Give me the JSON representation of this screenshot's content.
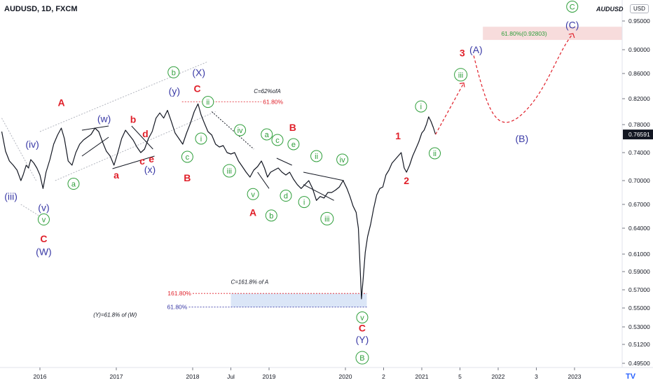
{
  "header": {
    "symbol_line": "AUDUSD, 1D, FXCM",
    "watermark_symbol": "AUDUSD",
    "currency": "USD",
    "logo": "TV"
  },
  "colors": {
    "wave_blue": "#3a3aa6",
    "wave_green": "#2e9e3a",
    "wave_red": "#e0202a",
    "price_line": "#131722",
    "axis_text": "#131722",
    "box_blue": "#dbe6f7",
    "box_pink": "#f5d3d3",
    "current_price_bg": "#131722"
  },
  "chart_data": {
    "type": "line",
    "title": "AUDUSD, 1D, FXCM",
    "xlabel": "",
    "ylabel": "",
    "x_ticks": [
      "2016",
      "2017",
      "2018",
      "Jul",
      "2019",
      "2020",
      "2",
      "2021",
      "5",
      "2022",
      "3",
      "2023"
    ],
    "x_tick_years": [
      2016.0,
      2017.0,
      2018.0,
      2018.5,
      2019.0,
      2020.0,
      2020.5,
      2021.0,
      2021.5,
      2022.0,
      2022.5,
      2023.0
    ],
    "y_ticks": [
      0.95,
      0.9,
      0.86,
      0.82,
      0.78,
      0.74,
      0.7,
      0.67,
      0.64,
      0.61,
      0.59,
      0.57,
      0.55,
      0.53,
      0.512,
      0.495
    ],
    "y_tick_labels": [
      "0.95000",
      "0.90000",
      "0.86000",
      "0.82000",
      "0.78000",
      "0.74000",
      "0.70000",
      "0.67000",
      "0.64000",
      "0.61000",
      "0.59000",
      "0.57000",
      "0.55000",
      "0.53000",
      "0.51200",
      "0.49500"
    ],
    "current_price": 0.76591,
    "current_price_label": "0.76591",
    "price_series": {
      "name": "AUDUSD",
      "points": [
        [
          2015.5,
          0.77
        ],
        [
          2015.55,
          0.742
        ],
        [
          2015.6,
          0.728
        ],
        [
          2015.65,
          0.722
        ],
        [
          2015.7,
          0.715
        ],
        [
          2015.75,
          0.7
        ],
        [
          2015.78,
          0.708
        ],
        [
          2015.82,
          0.722
        ],
        [
          2015.85,
          0.718
        ],
        [
          2015.88,
          0.73
        ],
        [
          2015.92,
          0.725
        ],
        [
          2015.96,
          0.718
        ],
        [
          2016.0,
          0.708
        ],
        [
          2016.04,
          0.69
        ],
        [
          2016.08,
          0.712
        ],
        [
          2016.13,
          0.73
        ],
        [
          2016.18,
          0.752
        ],
        [
          2016.23,
          0.765
        ],
        [
          2016.28,
          0.775
        ],
        [
          2016.32,
          0.76
        ],
        [
          2016.37,
          0.728
        ],
        [
          2016.42,
          0.722
        ],
        [
          2016.47,
          0.74
        ],
        [
          2016.52,
          0.752
        ],
        [
          2016.57,
          0.758
        ],
        [
          2016.62,
          0.762
        ],
        [
          2016.67,
          0.766
        ],
        [
          2016.72,
          0.775
        ],
        [
          2016.77,
          0.77
        ],
        [
          2016.82,
          0.755
        ],
        [
          2016.87,
          0.742
        ],
        [
          2016.92,
          0.735
        ],
        [
          2016.97,
          0.722
        ],
        [
          2017.02,
          0.74
        ],
        [
          2017.07,
          0.76
        ],
        [
          2017.12,
          0.772
        ],
        [
          2017.17,
          0.765
        ],
        [
          2017.22,
          0.758
        ],
        [
          2017.27,
          0.748
        ],
        [
          2017.32,
          0.74
        ],
        [
          2017.37,
          0.745
        ],
        [
          2017.42,
          0.76
        ],
        [
          2017.47,
          0.77
        ],
        [
          2017.52,
          0.79
        ],
        [
          2017.57,
          0.798
        ],
        [
          2017.62,
          0.79
        ],
        [
          2017.67,
          0.802
        ],
        [
          2017.72,
          0.785
        ],
        [
          2017.77,
          0.768
        ],
        [
          2017.82,
          0.76
        ],
        [
          2017.87,
          0.752
        ],
        [
          2017.92,
          0.768
        ],
        [
          2017.97,
          0.782
        ],
        [
          2018.02,
          0.8
        ],
        [
          2018.07,
          0.812
        ],
        [
          2018.11,
          0.795
        ],
        [
          2018.15,
          0.783
        ],
        [
          2018.2,
          0.77
        ],
        [
          2018.25,
          0.765
        ],
        [
          2018.3,
          0.752
        ],
        [
          2018.35,
          0.748
        ],
        [
          2018.4,
          0.75
        ],
        [
          2018.45,
          0.74
        ],
        [
          2018.5,
          0.738
        ],
        [
          2018.55,
          0.74
        ],
        [
          2018.6,
          0.728
        ],
        [
          2018.65,
          0.72
        ],
        [
          2018.7,
          0.712
        ],
        [
          2018.75,
          0.705
        ],
        [
          2018.8,
          0.715
        ],
        [
          2018.85,
          0.72
        ],
        [
          2018.9,
          0.728
        ],
        [
          2018.94,
          0.718
        ],
        [
          2018.98,
          0.705
        ],
        [
          2019.02,
          0.712
        ],
        [
          2019.07,
          0.715
        ],
        [
          2019.12,
          0.718
        ],
        [
          2019.17,
          0.712
        ],
        [
          2019.22,
          0.708
        ],
        [
          2019.27,
          0.712
        ],
        [
          2019.32,
          0.702
        ],
        [
          2019.37,
          0.695
        ],
        [
          2019.42,
          0.69
        ],
        [
          2019.47,
          0.695
        ],
        [
          2019.52,
          0.7
        ],
        [
          2019.57,
          0.69
        ],
        [
          2019.62,
          0.675
        ],
        [
          2019.67,
          0.68
        ],
        [
          2019.72,
          0.678
        ],
        [
          2019.77,
          0.685
        ],
        [
          2019.82,
          0.685
        ],
        [
          2019.87,
          0.688
        ],
        [
          2019.92,
          0.692
        ],
        [
          2019.97,
          0.7
        ],
        [
          2020.02,
          0.69
        ],
        [
          2020.06,
          0.68
        ],
        [
          2020.1,
          0.668
        ],
        [
          2020.14,
          0.66
        ],
        [
          2020.17,
          0.64
        ],
        [
          2020.19,
          0.6
        ],
        [
          2020.21,
          0.56
        ],
        [
          2020.23,
          0.58
        ],
        [
          2020.26,
          0.612
        ],
        [
          2020.29,
          0.63
        ],
        [
          2020.33,
          0.645
        ],
        [
          2020.37,
          0.665
        ],
        [
          2020.41,
          0.682
        ],
        [
          2020.45,
          0.69
        ],
        [
          2020.49,
          0.692
        ],
        [
          2020.53,
          0.708
        ],
        [
          2020.57,
          0.715
        ],
        [
          2020.61,
          0.725
        ],
        [
          2020.65,
          0.73
        ],
        [
          2020.69,
          0.735
        ],
        [
          2020.73,
          0.74
        ],
        [
          2020.77,
          0.718
        ],
        [
          2020.8,
          0.712
        ],
        [
          2020.84,
          0.722
        ],
        [
          2020.88,
          0.735
        ],
        [
          2020.92,
          0.745
        ],
        [
          2020.96,
          0.755
        ],
        [
          2021.0,
          0.768
        ],
        [
          2021.03,
          0.772
        ],
        [
          2021.06,
          0.78
        ],
        [
          2021.09,
          0.792
        ],
        [
          2021.12,
          0.785
        ],
        [
          2021.15,
          0.776
        ],
        [
          2021.18,
          0.766
        ]
      ]
    },
    "projection": {
      "name": "projected path",
      "points": [
        [
          2021.18,
          0.766
        ],
        [
          2021.55,
          0.845
        ],
        [
          2021.68,
          0.89
        ],
        [
          2022.25,
          0.79
        ],
        [
          2022.85,
          0.905
        ],
        [
          2022.98,
          0.928
        ]
      ]
    },
    "fib_levels": [
      {
        "label": "61.80%",
        "value": 0.815,
        "color": "#e0202a"
      },
      {
        "label": "161.80%",
        "value": 0.566,
        "color": "#e0202a"
      },
      {
        "label": "61.80%",
        "value": 0.551,
        "color": "#3a3aa6"
      },
      {
        "label": "61.80%(0.92803)",
        "value": 0.928,
        "color": "#2e9e3a"
      }
    ],
    "annotations": [
      {
        "text": "C=62%ofA",
        "x": 2018.8,
        "y": 0.832
      },
      {
        "text": "C=161.8% of A",
        "x": 2018.5,
        "y": 0.579
      },
      {
        "text": "(Y)=61.8% of (W)",
        "x": 2016.7,
        "y": 0.543
      }
    ],
    "wave_labels": [
      {
        "text": "(iii)",
        "x": 2015.62,
        "y": 0.68,
        "color": "blue",
        "circle": false
      },
      {
        "text": "(iv)",
        "x": 2015.9,
        "y": 0.752,
        "color": "blue",
        "circle": false
      },
      {
        "text": "(v)",
        "x": 2016.05,
        "y": 0.666,
        "color": "blue",
        "circle": false
      },
      {
        "text": "v",
        "x": 2016.05,
        "y": 0.651,
        "color": "green",
        "circle": true
      },
      {
        "text": "C",
        "x": 2016.05,
        "y": 0.628,
        "color": "red",
        "circle": false
      },
      {
        "text": "(W)",
        "x": 2016.05,
        "y": 0.613,
        "color": "blue",
        "circle": false
      },
      {
        "text": "A",
        "x": 2016.28,
        "y": 0.814,
        "color": "red",
        "circle": false
      },
      {
        "text": "a",
        "x": 2016.44,
        "y": 0.696,
        "color": "green",
        "circle": true
      },
      {
        "text": "(w)",
        "x": 2016.84,
        "y": 0.789,
        "color": "blue",
        "circle": false
      },
      {
        "text": "a",
        "x": 2017.0,
        "y": 0.708,
        "color": "red",
        "circle": false
      },
      {
        "text": "b",
        "x": 2017.22,
        "y": 0.788,
        "color": "red",
        "circle": false
      },
      {
        "text": "d",
        "x": 2017.38,
        "y": 0.767,
        "color": "red",
        "circle": false
      },
      {
        "text": "c",
        "x": 2017.34,
        "y": 0.728,
        "color": "red",
        "circle": false
      },
      {
        "text": "e",
        "x": 2017.46,
        "y": 0.731,
        "color": "red",
        "circle": false
      },
      {
        "text": "(x)",
        "x": 2017.44,
        "y": 0.716,
        "color": "blue",
        "circle": false
      },
      {
        "text": "b",
        "x": 2017.75,
        "y": 0.862,
        "color": "green",
        "circle": true
      },
      {
        "text": "(y)",
        "x": 2017.76,
        "y": 0.832,
        "color": "blue",
        "circle": false
      },
      {
        "text": "(X)",
        "x": 2018.08,
        "y": 0.862,
        "color": "blue",
        "circle": false
      },
      {
        "text": "C",
        "x": 2018.06,
        "y": 0.836,
        "color": "red",
        "circle": false
      },
      {
        "text": "ii",
        "x": 2018.2,
        "y": 0.815,
        "color": "green",
        "circle": true
      },
      {
        "text": "c",
        "x": 2017.93,
        "y": 0.734,
        "color": "green",
        "circle": true
      },
      {
        "text": "i",
        "x": 2018.11,
        "y": 0.76,
        "color": "green",
        "circle": true
      },
      {
        "text": "B",
        "x": 2017.93,
        "y": 0.704,
        "color": "red",
        "circle": false
      },
      {
        "text": "iv",
        "x": 2018.62,
        "y": 0.772,
        "color": "green",
        "circle": true
      },
      {
        "text": "iii",
        "x": 2018.48,
        "y": 0.714,
        "color": "green",
        "circle": true
      },
      {
        "text": "a",
        "x": 2018.97,
        "y": 0.766,
        "color": "green",
        "circle": true
      },
      {
        "text": "c",
        "x": 2019.11,
        "y": 0.758,
        "color": "green",
        "circle": true
      },
      {
        "text": "e",
        "x": 2019.32,
        "y": 0.752,
        "color": "green",
        "circle": true
      },
      {
        "text": "B",
        "x": 2019.31,
        "y": 0.776,
        "color": "red",
        "circle": false
      },
      {
        "text": "v",
        "x": 2018.79,
        "y": 0.683,
        "color": "green",
        "circle": true
      },
      {
        "text": "d",
        "x": 2019.22,
        "y": 0.681,
        "color": "green",
        "circle": true
      },
      {
        "text": "A",
        "x": 2018.79,
        "y": 0.66,
        "color": "red",
        "circle": false
      },
      {
        "text": "b",
        "x": 2019.03,
        "y": 0.656,
        "color": "green",
        "circle": true
      },
      {
        "text": "ii",
        "x": 2019.62,
        "y": 0.735,
        "color": "green",
        "circle": true
      },
      {
        "text": "iv",
        "x": 2019.96,
        "y": 0.73,
        "color": "green",
        "circle": true
      },
      {
        "text": "i",
        "x": 2019.46,
        "y": 0.673,
        "color": "green",
        "circle": true
      },
      {
        "text": "iii",
        "x": 2019.76,
        "y": 0.652,
        "color": "green",
        "circle": true
      },
      {
        "text": "v",
        "x": 2020.22,
        "y": 0.54,
        "color": "green",
        "circle": true
      },
      {
        "text": "C",
        "x": 2020.22,
        "y": 0.529,
        "color": "red",
        "circle": false
      },
      {
        "text": "(Y)",
        "x": 2020.22,
        "y": 0.517,
        "color": "blue",
        "circle": false
      },
      {
        "text": "B",
        "x": 2020.22,
        "y": 0.5,
        "color": "green",
        "circle": true
      },
      {
        "text": "1",
        "x": 2020.69,
        "y": 0.764,
        "color": "red",
        "circle": false
      },
      {
        "text": "2",
        "x": 2020.8,
        "y": 0.7,
        "color": "red",
        "circle": false
      },
      {
        "text": "i",
        "x": 2020.99,
        "y": 0.808,
        "color": "green",
        "circle": true
      },
      {
        "text": "ii",
        "x": 2021.17,
        "y": 0.739,
        "color": "green",
        "circle": true
      },
      {
        "text": "iii",
        "x": 2021.51,
        "y": 0.858,
        "color": "green",
        "circle": true
      },
      {
        "text": "3",
        "x": 2021.53,
        "y": 0.895,
        "color": "red",
        "circle": false
      },
      {
        "text": "(A)",
        "x": 2021.71,
        "y": 0.9,
        "color": "blue",
        "circle": false
      },
      {
        "text": "(B)",
        "x": 2022.31,
        "y": 0.76,
        "color": "blue",
        "circle": false
      },
      {
        "text": "C",
        "x": 2022.97,
        "y": 0.975,
        "color": "green",
        "circle": true
      },
      {
        "text": "(C)",
        "x": 2022.97,
        "y": 0.943,
        "color": "blue",
        "circle": false
      }
    ]
  }
}
